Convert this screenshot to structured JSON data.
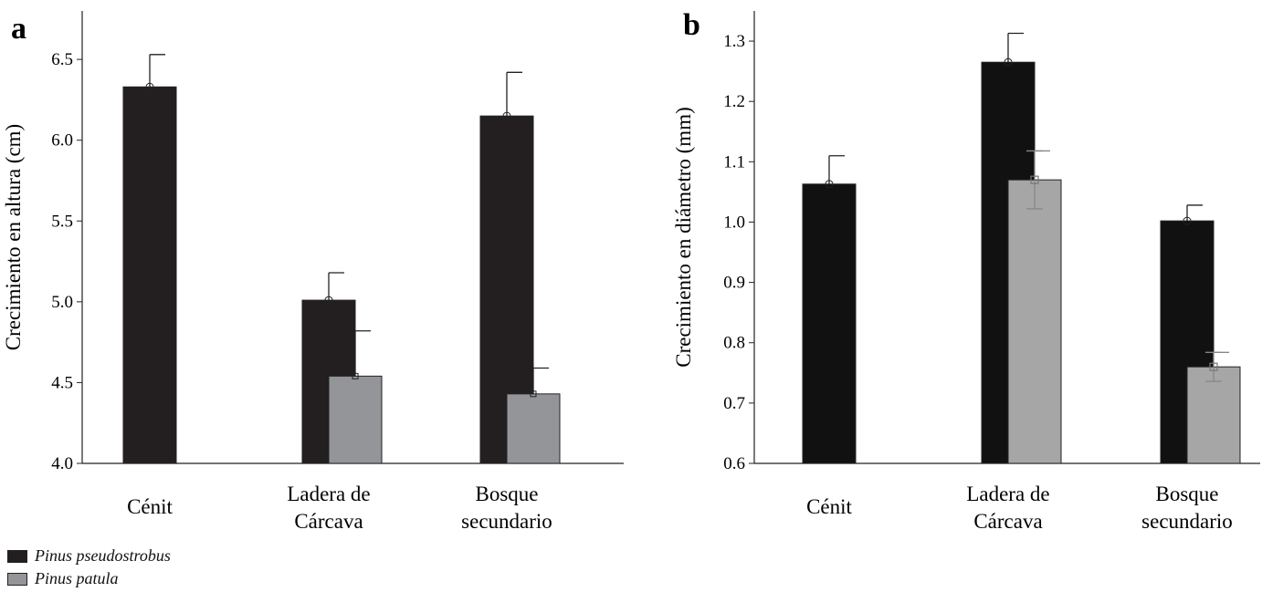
{
  "colors": {
    "a": {
      "pseudostrobus": "#231f20",
      "patula": "#939598"
    },
    "b": {
      "pseudostrobus": "#111111",
      "patula": "#a6a6a6"
    }
  },
  "legend": [
    {
      "label": "Pinus pseudostrobus",
      "color": "#231f20"
    },
    {
      "label": "Pinus patula",
      "color": "#939598"
    }
  ],
  "chart_data": [
    {
      "panel": "a",
      "type": "bar",
      "ylabel": "Crecimiento en altura (cm)",
      "ylim": [
        4.0,
        6.8
      ],
      "yticks": [
        "4.0",
        "4.5",
        "5.0",
        "5.5",
        "6.0",
        "6.5"
      ],
      "categories": [
        [
          "Cénit"
        ],
        [
          "Ladera de",
          "Cárcava"
        ],
        [
          "Bosque",
          "secundario"
        ]
      ],
      "series": [
        {
          "name": "Pinus pseudostrobus",
          "values": [
            6.33,
            5.01,
            6.15
          ],
          "errors": [
            0.2,
            0.17,
            0.27
          ]
        },
        {
          "name": "Pinus patula",
          "values": [
            null,
            4.54,
            4.43
          ],
          "errors": [
            null,
            0.28,
            0.16
          ]
        }
      ]
    },
    {
      "panel": "b",
      "type": "bar",
      "ylabel": "Crecimiento en diámetro (mm)",
      "ylim": [
        0.6,
        1.35
      ],
      "yticks": [
        "0.6",
        "0.7",
        "0.8",
        "0.9",
        "1.0",
        "1.1",
        "1.2",
        "1.3"
      ],
      "categories": [
        [
          "Cénit"
        ],
        [
          "Ladera de",
          "Cárcava"
        ],
        [
          "Bosque",
          "secundario"
        ]
      ],
      "series": [
        {
          "name": "Pinus pseudostrobus",
          "values": [
            1.063,
            1.265,
            1.002
          ],
          "errors": [
            0.047,
            0.048,
            0.026
          ]
        },
        {
          "name": "Pinus patula",
          "values": [
            null,
            1.07,
            0.76
          ],
          "errors": [
            null,
            0.048,
            0.024
          ]
        }
      ]
    }
  ]
}
